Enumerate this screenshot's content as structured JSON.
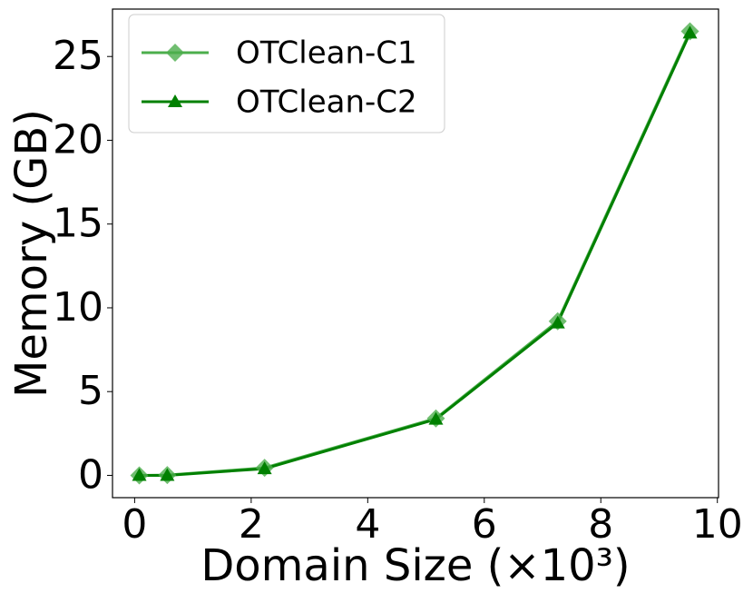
{
  "chart_data": {
    "type": "line",
    "xlabel": "Domain Size (×10³)",
    "ylabel": "Memory (GB)",
    "x": [
      0.08,
      0.56,
      2.23,
      5.17,
      7.26,
      9.53
    ],
    "series": [
      {
        "name": "OTClean-C1",
        "color": "#4cae4c",
        "marker": "diamond",
        "values": [
          0,
          0.02,
          0.45,
          3.4,
          9.2,
          26.5
        ]
      },
      {
        "name": "OTClean-C2",
        "color": "#008000",
        "marker": "triangle",
        "values": [
          0,
          0,
          0.4,
          3.35,
          9.1,
          26.4
        ]
      }
    ],
    "xlim": [
      -0.38,
      10.02
    ],
    "xticks": [
      0,
      2,
      4,
      6,
      8,
      10
    ],
    "ylim": [
      -1.33,
      27.83
    ],
    "yticks": [
      0,
      5,
      10,
      15,
      20,
      25
    ],
    "grid": false,
    "legend": "upper left"
  }
}
